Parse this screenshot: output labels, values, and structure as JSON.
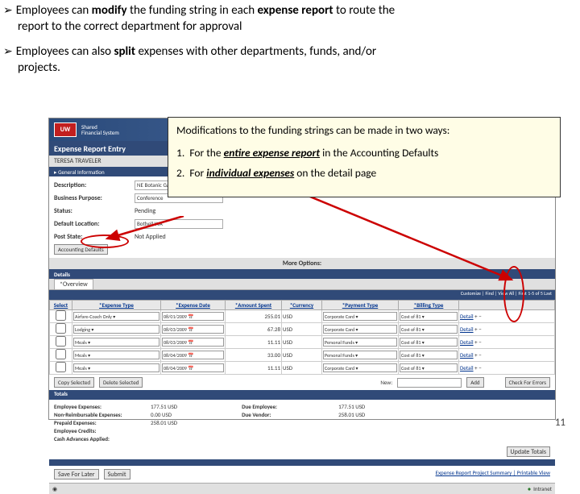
{
  "bullets": {
    "b1_pre": "Employees can ",
    "b1_bold1": "modify",
    "b1_mid": " the funding string in each ",
    "b1_bold2": "expense report",
    "b1_post": " to route the",
    "b1_line2": "report to the correct department for approval",
    "b2_pre": "Employees can also ",
    "b2_bold1": "split",
    "b2_post": " expenses with other departments, funds, and/or",
    "b2_line2": "projects."
  },
  "callout": {
    "line1": "Modifications to the funding strings can be made in two ways:",
    "line2_num": "1.",
    "line2_pre": "For the ",
    "line2_em": "entire expense report",
    "line2_post": " in the Accounting Defaults",
    "line3_num": "2.",
    "line3_pre": "For ",
    "line3_em": "individual expenses",
    "line3_post": " on the detail page"
  },
  "app": {
    "logo": "UW",
    "sys1": "Shared",
    "sys2": "Financial System",
    "title": "Expense Report Entry",
    "traveler": "TERESA TRAVELER",
    "gen_info": "▸ General Information",
    "desc_label": "Description:",
    "desc_val": "NE Botanic Garden",
    "purpose_label": "Business Purpose:",
    "purpose_val": "Conference",
    "status_label": "Status:",
    "status_val": "Pending",
    "loc_label": "Default Location:",
    "loc_val": "Bothell WA",
    "post_label": "Post State:",
    "post_val": "Not Applied",
    "acc_defaults": "Accounting Defaults",
    "more_options": "More Options:",
    "details": "Details",
    "overview": "*Overview",
    "cust": "Customize | Find | View All | First 1-5 of 5 Last"
  },
  "table": {
    "h_select": "Select",
    "h_type": "*Expense Type",
    "h_date": "*Expense Date",
    "h_amount": "*Amount Spent",
    "h_currency": "*Currency",
    "h_payment": "*Payment Type",
    "h_billing": "*Billing Type",
    "rows": [
      {
        "type": "Airfare-Coach Only",
        "date": "08/01/2009",
        "amt": "255.01",
        "cur": "USD",
        "pay": "Corporate Card",
        "bill": "Cost of 81"
      },
      {
        "type": "Lodging",
        "date": "08/03/2009",
        "amt": "67.28",
        "cur": "USD",
        "pay": "Corporate Card",
        "bill": "Cost of 81"
      },
      {
        "type": "Meals",
        "date": "08/03/2009",
        "amt": "11.11",
        "cur": "USD",
        "pay": "Personal Funds",
        "bill": "Cost of 81"
      },
      {
        "type": "Meals",
        "date": "08/04/2009",
        "amt": "33.00",
        "cur": "USD",
        "pay": "Personal Funds",
        "bill": "Cost of 81"
      },
      {
        "type": "Meals",
        "date": "08/04/2009",
        "amt": "11.11",
        "cur": "USD",
        "pay": "Corporate Card",
        "bill": "Cost of 81"
      }
    ],
    "detail_link": "Detail"
  },
  "actions": {
    "copy": "Copy Selected",
    "delete": "Delete Selected",
    "new_label": "New:",
    "add": "Add",
    "check": "Check For Errors"
  },
  "totals": {
    "header": "Totals",
    "emp_exp": "Employee Expenses:",
    "emp_exp_v": "177.51 USD",
    "nonreimb": "Non-Reimbursable Expenses:",
    "nonreimb_v": "0.00 USD",
    "prepaid": "Prepaid Expenses:",
    "prepaid_v": "258.01 USD",
    "credits": "Employee Credits:",
    "credits_v": "",
    "cash": "Cash Advances Applied:",
    "cash_v": "",
    "due_emp": "Due Employee:",
    "due_emp_v": "177.51 USD",
    "due_vend": "Due Vendor:",
    "due_vend_v": "258.01 USD",
    "update": "Update Totals"
  },
  "final": {
    "save": "Save For Later",
    "submit": "Submit",
    "printable": "Printable View",
    "link_text": "Expense Report Project Summary"
  },
  "status": {
    "intranet": "Intranet"
  },
  "page_num": "11"
}
